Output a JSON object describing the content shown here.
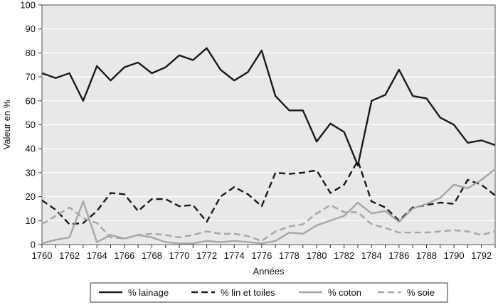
{
  "chart_data": {
    "type": "line",
    "title": "",
    "xlabel": "Années",
    "ylabel": "Valeur en %",
    "ylim": [
      0,
      100
    ],
    "xlim": [
      1760,
      1793
    ],
    "yticks": [
      "0",
      "10",
      "20",
      "30",
      "40",
      "50",
      "60",
      "70",
      "80",
      "90",
      "100"
    ],
    "xticks": [
      "1760",
      "1762",
      "1764",
      "1766",
      "1768",
      "1770",
      "1772",
      "1774",
      "1776",
      "1778",
      "1780",
      "1782",
      "1784",
      "1786",
      "1788",
      "1790",
      "1792"
    ],
    "grid": "horizontal",
    "plot_background": "#e8e8e8",
    "legend_position": "bottom",
    "x": [
      1760,
      1761,
      1762,
      1763,
      1764,
      1765,
      1766,
      1767,
      1768,
      1769,
      1770,
      1771,
      1772,
      1773,
      1774,
      1775,
      1776,
      1777,
      1778,
      1779,
      1780,
      1781,
      1782,
      1783,
      1784,
      1785,
      1786,
      1787,
      1788,
      1789,
      1790,
      1791,
      1792,
      1793
    ],
    "series": [
      {
        "name": "% lainage",
        "color": "#1a1a1a",
        "dash": "solid",
        "values": [
          71.5,
          69.5,
          71.5,
          60,
          74.5,
          68.5,
          74,
          76,
          71.5,
          74,
          79,
          77,
          82,
          73,
          68.5,
          72,
          81,
          62,
          56,
          56,
          43,
          50.5,
          47,
          33,
          60,
          62.5,
          73,
          62,
          61,
          53,
          50,
          42.5,
          43.5,
          41.5
        ]
      },
      {
        "name": "% lin et toiles",
        "color": "#1a1a1a",
        "dash": "dashed",
        "values": [
          18.5,
          14.5,
          8.5,
          9,
          14,
          21.5,
          21,
          14,
          19,
          19,
          16,
          16.5,
          9.5,
          20,
          24,
          21,
          16,
          30,
          29.5,
          30,
          31,
          21.5,
          25,
          35,
          18,
          15.5,
          10,
          15.5,
          16.5,
          17.5,
          17,
          27,
          25,
          20.5
        ]
      },
      {
        "name": "% coton",
        "color": "#a6a6a6",
        "dash": "solid",
        "values": [
          0.5,
          2,
          3,
          18,
          1,
          4,
          2.5,
          4,
          3,
          1,
          0.5,
          0.5,
          1.5,
          1,
          1.5,
          1,
          0.5,
          1.5,
          5,
          4.5,
          8,
          10,
          12,
          17.5,
          13,
          14,
          9.5,
          15,
          17,
          19.5,
          25,
          23.5,
          27,
          31.5
        ]
      },
      {
        "name": "% soie",
        "color": "#a6a6a6",
        "dash": "dashed",
        "values": [
          8.5,
          12,
          15.5,
          11,
          9,
          3,
          2.5,
          4,
          4.5,
          4,
          3,
          4,
          5.5,
          4.5,
          4.5,
          3.5,
          1.5,
          5.5,
          7.5,
          8.5,
          13,
          16.5,
          13.5,
          13.5,
          8.5,
          7,
          5,
          5,
          5,
          5.5,
          6,
          5.5,
          4,
          5.5
        ]
      }
    ]
  }
}
